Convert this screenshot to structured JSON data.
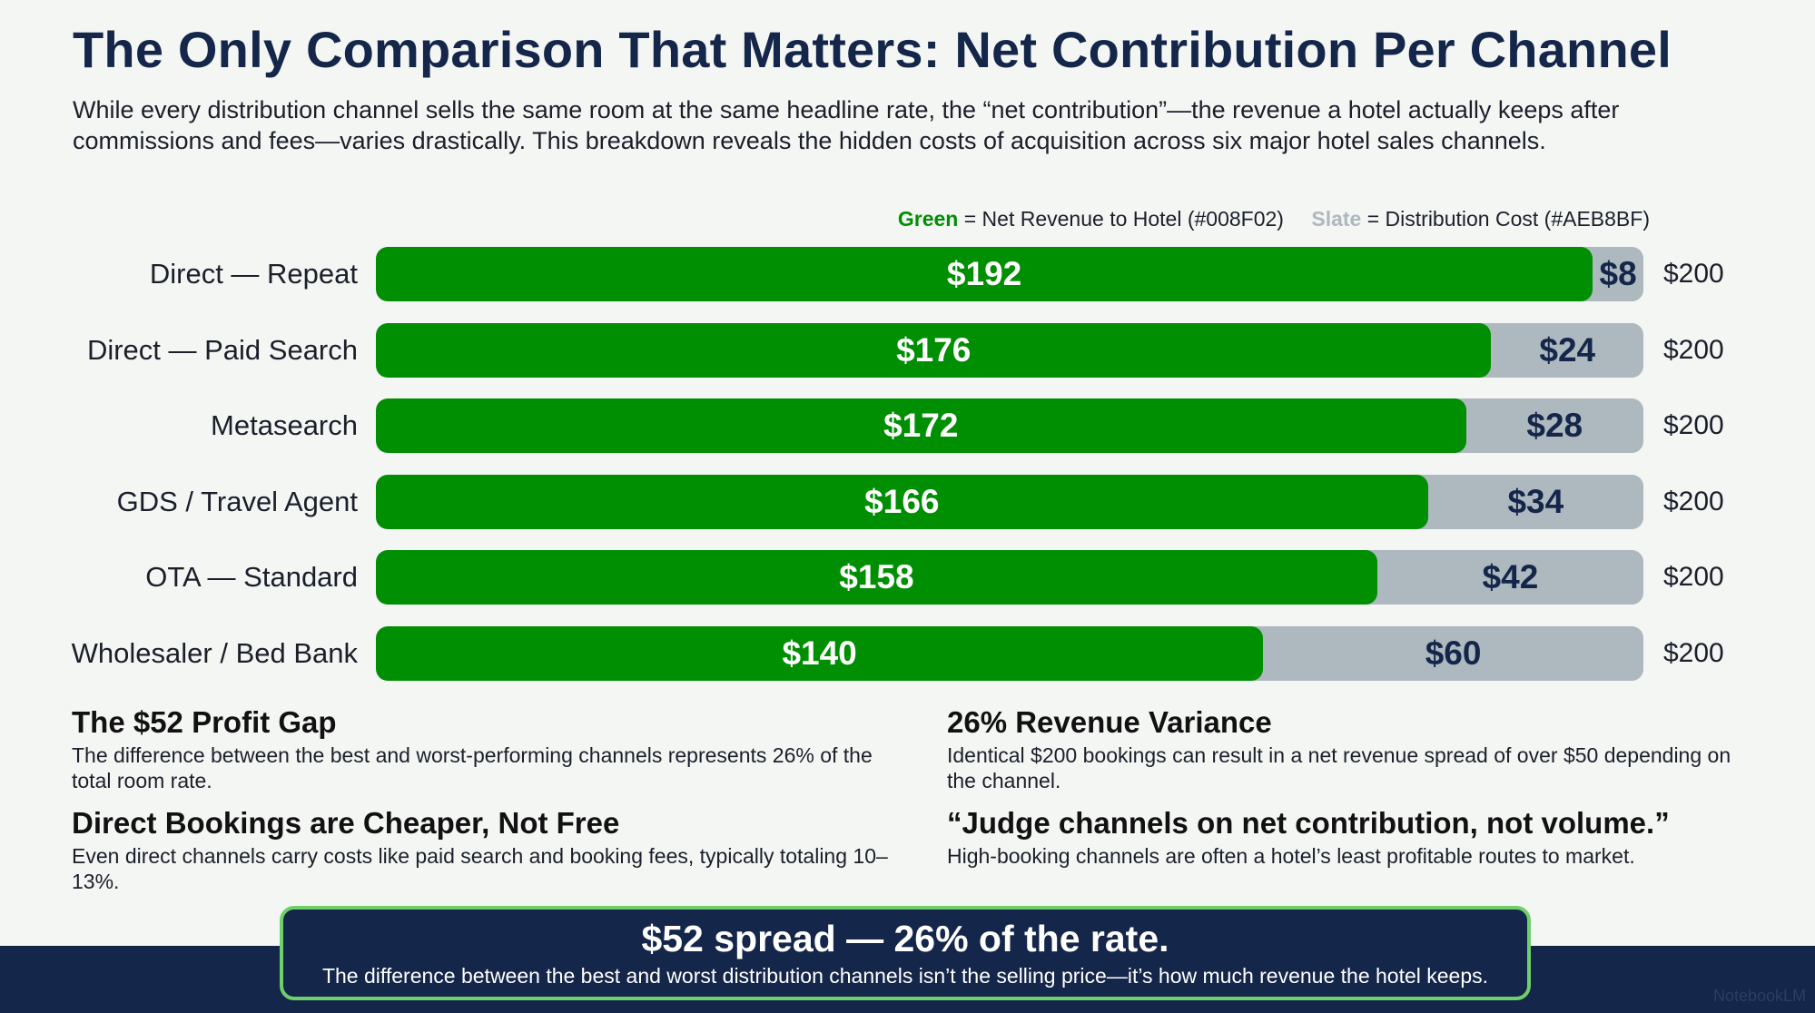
{
  "title": "The Only Comparison That Matters: Net Contribution Per Channel",
  "subtitle": "While every distribution channel sells the same room at the same headline rate, the “net contribution”—the revenue a hotel actually keeps after commissions and fees—varies drastically. This breakdown reveals the hidden costs of acquisition across six major hotel sales channels.",
  "legend": {
    "green_word": "Green",
    "green_text": " = Net Revenue to Hotel (#008F02)",
    "slate_word": "Slate",
    "slate_text": " = Distribution Cost (#AEB8BF)"
  },
  "colors": {
    "net": "#008F02",
    "cost": "#AEB8BF",
    "navy": "#14264A",
    "callout_border": "#6FCF6A"
  },
  "chart_data": {
    "type": "bar",
    "orientation": "horizontal",
    "stacked": true,
    "categories": [
      "Direct — Repeat",
      "Direct — Paid Search",
      "Metasearch",
      "GDS / Travel Agent",
      "OTA — Standard",
      "Wholesaler / Bed Bank"
    ],
    "series": [
      {
        "name": "Net Revenue to Hotel",
        "values": [
          192,
          176,
          172,
          166,
          158,
          140
        ]
      },
      {
        "name": "Distribution Cost",
        "values": [
          8,
          24,
          28,
          34,
          42,
          60
        ]
      }
    ],
    "totals": [
      200,
      200,
      200,
      200,
      200,
      200
    ],
    "xlim": [
      0,
      200
    ],
    "value_prefix": "$",
    "legend_position": "top-right",
    "grid": false
  },
  "insights": [
    {
      "heading": "The $52 Profit Gap",
      "body": "The difference between the best and worst-performing channels represents 26% of the total room rate."
    },
    {
      "heading": "26% Revenue Variance",
      "body": "Identical $200 bookings can result in a net revenue spread of over $50 depending on the channel."
    },
    {
      "heading": "Direct Bookings are Cheaper, Not Free",
      "body": "Even direct channels carry costs like paid search and booking fees, typically totaling 10–13%."
    },
    {
      "heading": "“Judge channels on net contribution, not volume.”",
      "body": "High-booking channels are often a hotel’s least profitable routes to market."
    }
  ],
  "callout": {
    "headline": "$52 spread — 26% of the rate.",
    "subtext": "The difference between the best and worst distribution channels isn’t the selling price—it’s how much revenue the hotel keeps."
  },
  "watermark": "NotebookLM"
}
